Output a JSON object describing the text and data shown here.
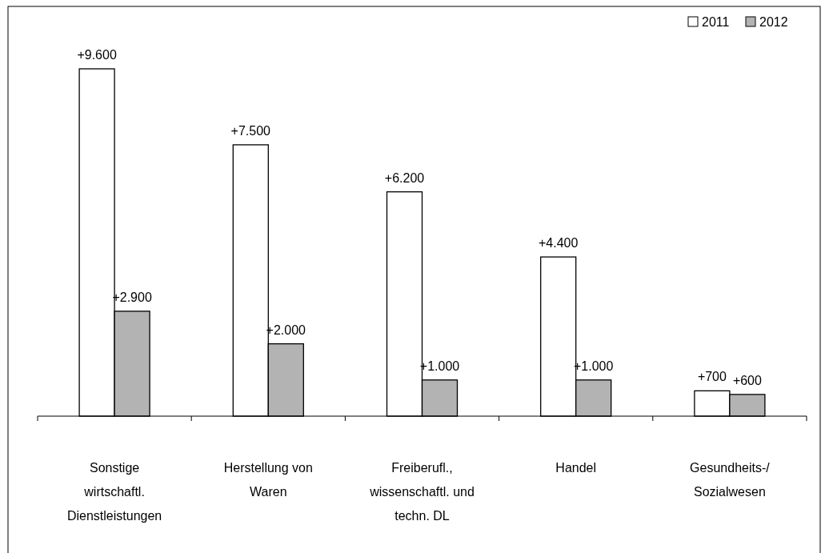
{
  "chart_data": {
    "type": "bar",
    "categories": [
      "Sonstige\nwirtschaftl.\nDienstleistungen",
      "Herstellung von\nWaren",
      "Freiberufl.,\nwissenschaftl. und\ntechn. DL",
      "Handel",
      "Gesundheits-/\nSozialwesen"
    ],
    "series": [
      {
        "name": "2011",
        "color": "#ffffff",
        "values": [
          9600,
          7500,
          6200,
          4400,
          700
        ],
        "value_labels": [
          "+9.600",
          "+7.500",
          "+6.200",
          "+4.400",
          "+700"
        ]
      },
      {
        "name": "2012",
        "color": "#b3b3b3",
        "values": [
          2900,
          2000,
          1000,
          1000,
          600
        ],
        "value_labels": [
          "+2.900",
          "+2.000",
          "+1.000",
          "+1.000",
          "+600"
        ]
      }
    ],
    "legend": "top right"
  }
}
